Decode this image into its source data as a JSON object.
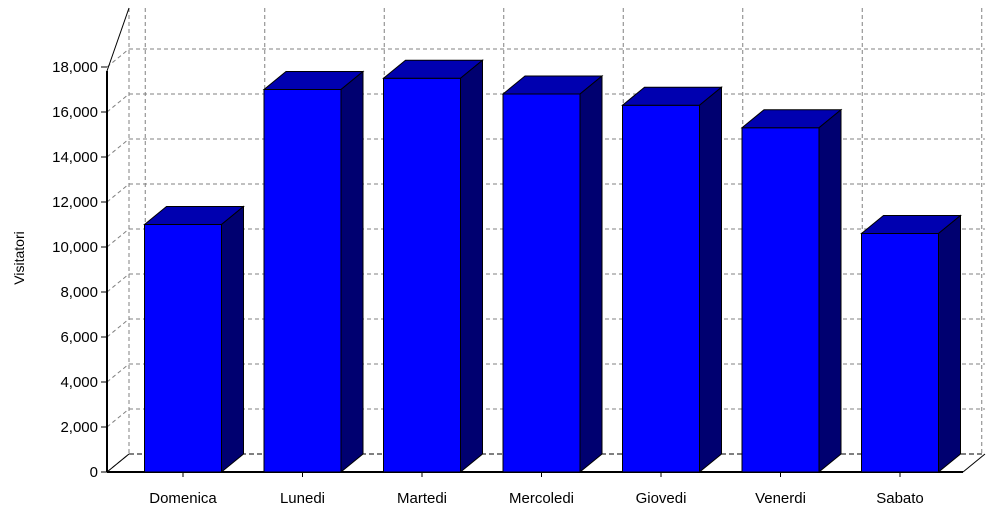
{
  "chart_data": {
    "type": "bar",
    "categories": [
      "Domenica",
      "Lunedi",
      "Martedi",
      "Mercoledi",
      "Giovedi",
      "Venerdi",
      "Sabato"
    ],
    "series": [
      {
        "values": [
          11000,
          17000,
          17500,
          16800,
          16300,
          15300,
          10600
        ]
      }
    ],
    "ylabel": "Visitatori",
    "xlabel": "",
    "ylim": [
      0,
      18000
    ],
    "y_ticks": [
      0,
      2000,
      4000,
      6000,
      8000,
      10000,
      12000,
      14000,
      16000,
      18000
    ],
    "y_tick_labels": [
      "0",
      "2,000",
      "4,000",
      "6,000",
      "8,000",
      "10,000",
      "12,000",
      "14,000",
      "16,000",
      "18,000"
    ],
    "grid": true,
    "legend": "none",
    "style": "3d",
    "colors": {
      "front": "#0000ff",
      "top": "#0000b0",
      "side": "#000070",
      "grid": "#808080",
      "outline": "#000000"
    }
  }
}
